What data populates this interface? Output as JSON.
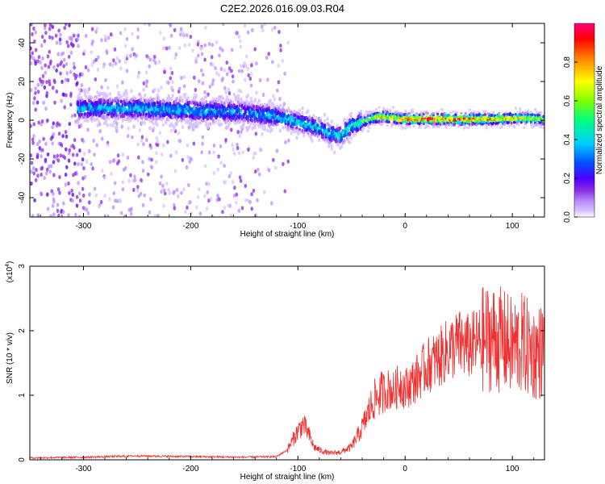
{
  "title": "C2E2.2026.016.09.03.R04",
  "colors": {
    "spectrogram_low": "#8a00ff",
    "snr_line": "#f03030",
    "colorbar": [
      "#ffffff",
      "#b98cff",
      "#8a2be2",
      "#4b00ff",
      "#0050ff",
      "#00d0ff",
      "#00ff80",
      "#7fff00",
      "#ffff00",
      "#ff8000",
      "#ff0000",
      "#ff0080"
    ]
  },
  "chart_data": [
    {
      "type": "heatmap",
      "xlabel": "Height of straight line (km)",
      "ylabel": "Frequency (Hz)",
      "xlim": [
        -350,
        130
      ],
      "ylim": [
        -50,
        50
      ],
      "x_ticks": [
        "-300",
        "-200",
        "-100",
        "0",
        "100"
      ],
      "x_tick_values": [
        -300,
        -200,
        -100,
        0,
        100
      ],
      "y_ticks": [
        "-40",
        "-20",
        "0",
        "20",
        "40"
      ],
      "y_tick_values": [
        -40,
        -20,
        0,
        20,
        40
      ],
      "colorbar": {
        "label": "Normalized spectral amplitude",
        "range": [
          0,
          1
        ],
        "ticks": [
          "0.0",
          "0.2",
          "0.4",
          "0.6",
          "0.8"
        ],
        "tick_values": [
          0.0,
          0.2,
          0.4,
          0.6,
          0.8
        ]
      },
      "ridge": {
        "x": [
          -300,
          -250,
          -200,
          -150,
          -120,
          -100,
          -80,
          -70,
          -60,
          -50,
          -40,
          -30,
          -20,
          -10,
          0,
          20,
          40,
          60,
          80,
          100,
          120,
          130
        ],
        "center_frequency": [
          6,
          6,
          5,
          4,
          2,
          -1,
          -4,
          -7,
          -8,
          -3,
          -1,
          1,
          2,
          1,
          0.5,
          0.5,
          0.5,
          0.5,
          0.5,
          1,
          1,
          0.5
        ],
        "amplitude": [
          0.45,
          0.45,
          0.45,
          0.4,
          0.45,
          0.5,
          0.5,
          0.45,
          0.5,
          0.55,
          0.6,
          0.75,
          0.85,
          0.8,
          0.9,
          0.95,
          0.95,
          0.95,
          0.85,
          0.8,
          0.75,
          0.75
        ]
      }
    },
    {
      "type": "line",
      "xlabel": "Height of straight line (km)",
      "ylabel": "SNR (10 * v/v)",
      "y_scale_label": "(x10",
      "y_scale_exponent": "4",
      "xlim": [
        -350,
        130
      ],
      "ylim": [
        0,
        3.0
      ],
      "x_ticks": [
        "-300",
        "-200",
        "-100",
        "0",
        "100"
      ],
      "x_tick_values": [
        -300,
        -200,
        -100,
        0,
        100
      ],
      "y_ticks": [
        "0",
        "1",
        "2",
        "3"
      ],
      "y_tick_values": [
        0,
        1,
        2,
        3
      ],
      "series": [
        {
          "x": [
            -350,
            -300,
            -250,
            -200,
            -150,
            -120,
            -110,
            -100,
            -95,
            -90,
            -85,
            -80,
            -70,
            -60,
            -50,
            -45,
            -40,
            -35,
            -30,
            -25,
            -20,
            -15,
            -10,
            -5,
            0,
            10,
            20,
            30,
            40,
            50,
            60,
            70,
            80,
            90,
            100,
            110,
            120,
            130
          ],
          "values": [
            0.03,
            0.04,
            0.06,
            0.05,
            0.04,
            0.05,
            0.15,
            0.45,
            0.55,
            0.4,
            0.2,
            0.15,
            0.1,
            0.12,
            0.2,
            0.35,
            0.5,
            0.7,
            0.9,
            1.0,
            1.05,
            1.1,
            1.05,
            1.2,
            1.1,
            1.25,
            1.45,
            1.55,
            1.7,
            1.8,
            1.75,
            1.85,
            1.9,
            1.85,
            1.75,
            1.8,
            1.65,
            1.7
          ]
        }
      ]
    }
  ]
}
